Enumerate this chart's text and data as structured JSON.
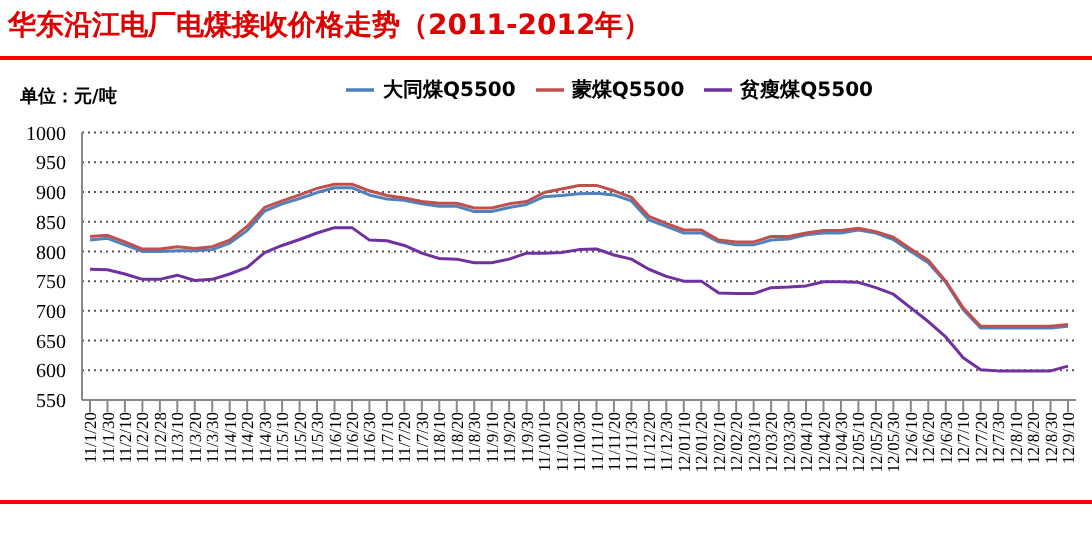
{
  "chart_data": {
    "type": "line",
    "title": "华东沿江电厂电煤接收价格走势（2011-2012年）",
    "ylabel": "单位：元/吨",
    "categories": [
      "11/1/20",
      "11/1/30",
      "11/2/10",
      "11/2/20",
      "11/2/28",
      "11/3/10",
      "11/3/20",
      "11/3/30",
      "11/4/10",
      "11/4/20",
      "11/4/30",
      "11/5/10",
      "11/5/20",
      "11/5/30",
      "11/6/10",
      "11/6/20",
      "11/6/30",
      "11/7/10",
      "11/7/20",
      "11/7/30",
      "11/8/10",
      "11/8/20",
      "11/8/30",
      "11/9/10",
      "11/9/20",
      "11/9/30",
      "11/10/10",
      "11/10/20",
      "11/10/30",
      "11/11/10",
      "11/11/20",
      "11/11/30",
      "11/12/20",
      "11/12/30",
      "12/01/10",
      "12/01/20",
      "12/02/10",
      "12/02/20",
      "12/03/10",
      "12/03/20",
      "12/03/30",
      "12/04/10",
      "12/04/20",
      "12/04/30",
      "12/05/10",
      "12/05/20",
      "12/05/30",
      "12/6/10",
      "12/6/20",
      "12/6/30",
      "12/7/10",
      "12/7/20",
      "12/7/30",
      "12/8/10",
      "12/8/20",
      "12/8/30",
      "12/9/10"
    ],
    "series": [
      {
        "name": "大同煤Q5500",
        "color": "#4f81bd",
        "values": [
          819,
          822,
          811,
          800,
          800,
          801,
          801,
          803,
          814,
          835,
          868,
          880,
          889,
          899,
          907,
          907,
          895,
          888,
          886,
          880,
          876,
          876,
          867,
          867,
          874,
          879,
          892,
          894,
          897,
          898,
          895,
          885,
          853,
          842,
          831,
          831,
          816,
          811,
          811,
          819,
          821,
          828,
          831,
          831,
          836,
          831,
          820,
          800,
          781,
          748,
          702,
          671,
          671,
          671,
          671,
          671,
          674
        ]
      },
      {
        "name": "蒙煤Q5500",
        "color": "#c0504d",
        "values": [
          825,
          827,
          816,
          804,
          804,
          808,
          805,
          808,
          819,
          842,
          874,
          885,
          895,
          906,
          913,
          913,
          902,
          894,
          890,
          884,
          881,
          881,
          873,
          873,
          880,
          884,
          899,
          905,
          911,
          911,
          902,
          891,
          859,
          847,
          836,
          836,
          819,
          816,
          816,
          825,
          825,
          831,
          835,
          835,
          839,
          833,
          824,
          804,
          785,
          750,
          705,
          674,
          674,
          674,
          674,
          674,
          677
        ]
      },
      {
        "name": "贫瘦煤Q5500",
        "color": "#7030a0",
        "values": [
          770,
          769,
          762,
          753,
          753,
          760,
          751,
          753,
          762,
          773,
          798,
          810,
          820,
          831,
          840,
          840,
          819,
          818,
          810,
          797,
          788,
          787,
          781,
          781,
          787,
          797,
          797,
          798,
          803,
          804,
          794,
          787,
          770,
          758,
          750,
          750,
          730,
          729,
          729,
          739,
          740,
          742,
          749,
          749,
          748,
          739,
          728,
          705,
          682,
          656,
          621,
          601,
          599,
          599,
          599,
          599,
          607
        ]
      }
    ],
    "ylim": [
      550,
      1000
    ],
    "yticks": [
      550,
      600,
      650,
      700,
      750,
      800,
      850,
      900,
      950,
      1000
    ],
    "grid": "y",
    "legend": "top",
    "marker": "none",
    "line_style": "solid"
  }
}
